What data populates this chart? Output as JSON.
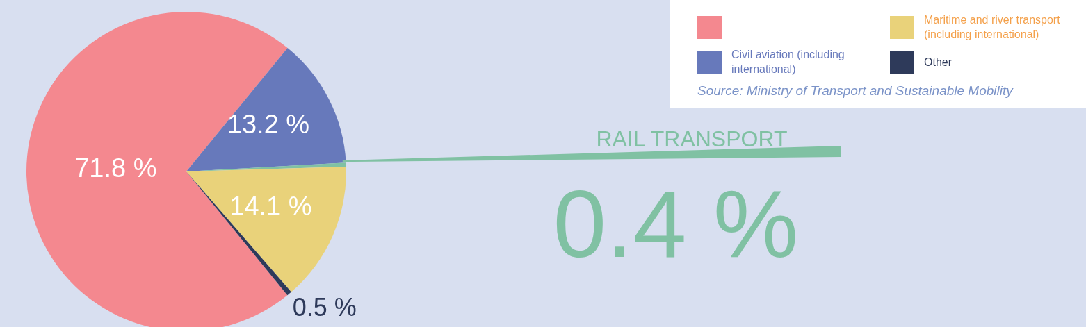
{
  "chart_data": {
    "type": "pie",
    "categories": [
      null,
      "Civil aviation (including international)",
      "RAIL TRANSPORT",
      "Maritime and river transport (including international)",
      "Other"
    ],
    "values": [
      71.8,
      13.2,
      0.4,
      14.1,
      0.5
    ],
    "colors": [
      "#f4888f",
      "#6779bb",
      "#80c1a3",
      "#e9d27a",
      "#2e3a5a"
    ],
    "value_labels": [
      "71.8 %",
      "13.2 %",
      "0.4 %",
      "14.1 %",
      "0.5 %"
    ],
    "legend": "top right",
    "annotations": [
      "Source: Ministry of Transport and Sustainable Mobility"
    ]
  }
}
